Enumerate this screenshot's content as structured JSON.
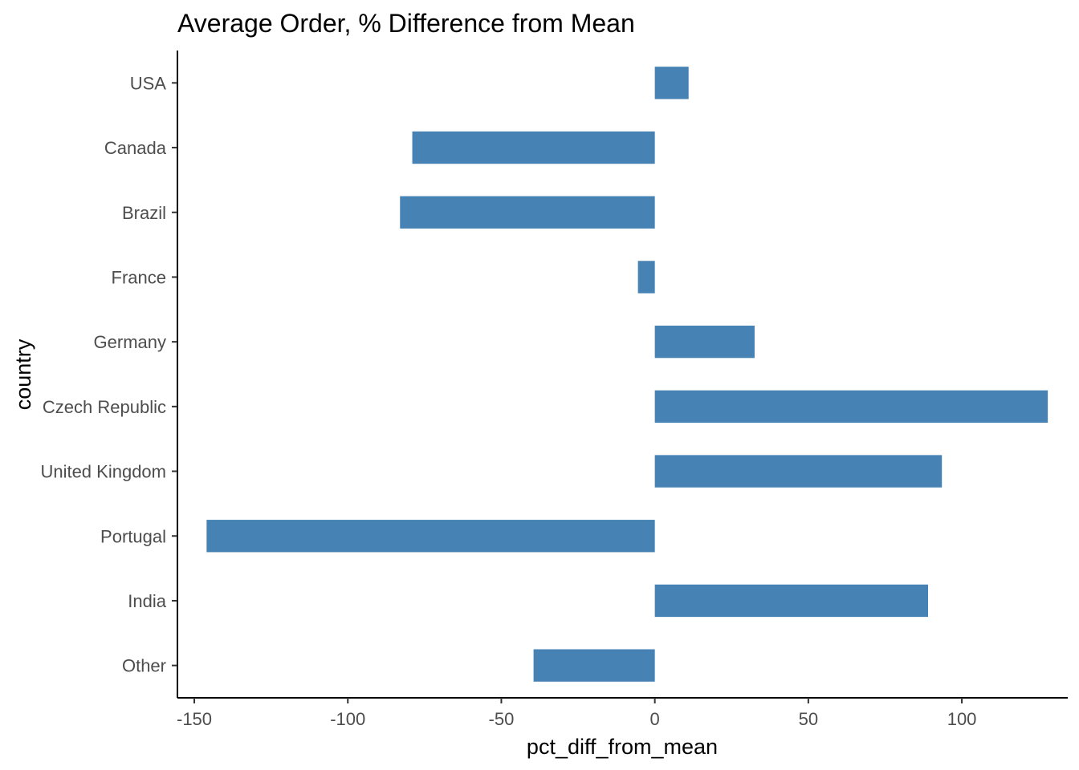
{
  "chart_data": {
    "type": "bar",
    "orientation": "horizontal",
    "title": "Average Order, % Difference from Mean",
    "xlabel": "pct_diff_from_mean",
    "ylabel": "country",
    "categories": [
      "USA",
      "Canada",
      "Brazil",
      "France",
      "Germany",
      "Czech Republic",
      "United Kingdom",
      "Portugal",
      "India",
      "Other"
    ],
    "values": [
      11,
      -79,
      -83,
      -5.5,
      32.5,
      128,
      93.5,
      -146,
      89,
      -39.5
    ],
    "xticks": [
      -150,
      -100,
      -50,
      0,
      50,
      100
    ],
    "xlim": [
      -155.5,
      134.5
    ],
    "bar_color": "#4682B4",
    "grid": false,
    "legend": "none"
  }
}
